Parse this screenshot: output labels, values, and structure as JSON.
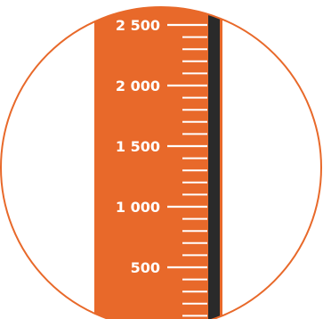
{
  "scale": {
    "min": 0,
    "max": 2500,
    "major_step": 500,
    "minor_step": 100,
    "labels": [
      "500",
      "1 000",
      "1 500",
      "2 000",
      "2 500"
    ]
  },
  "colors": {
    "accent": "#E8692A",
    "circle_stroke": "#E8692A",
    "tick": "#ffffff",
    "label": "#ffffff",
    "column": "#2a2a2a",
    "background": "#ffffff"
  },
  "icon": "measuring-scale-icon"
}
